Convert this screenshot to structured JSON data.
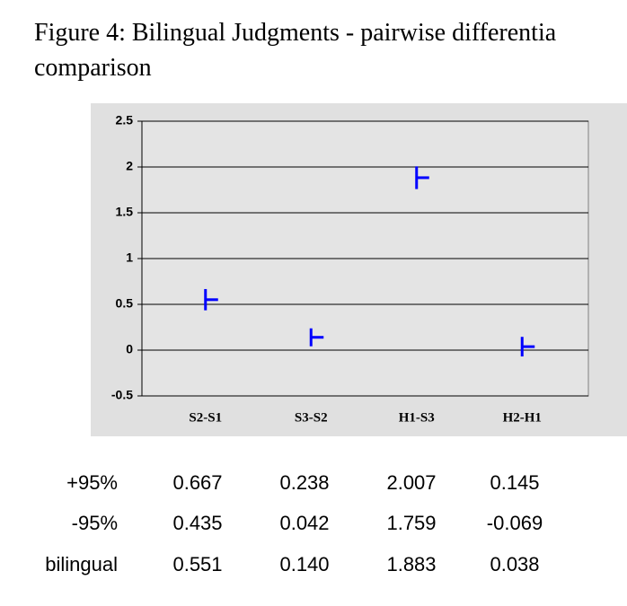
{
  "chart_data": {
    "type": "errorbar",
    "title": [
      "Figure 4: Bilingual Judgments - pairwise differentia",
      "comparison"
    ],
    "categories": [
      "S2-S1",
      "S3-S2",
      "H1-S3",
      "H2-H1"
    ],
    "color": "#0000ff",
    "ylim": [
      -0.5,
      2.5
    ],
    "yticks": [
      -0.5,
      0,
      0.5,
      1,
      1.5,
      2,
      2.5
    ],
    "grid": true,
    "series": [
      {
        "name": "+95%",
        "values": [
          0.667,
          0.238,
          2.007,
          0.145
        ],
        "value_labels": [
          "0.667",
          "0.238",
          "2.007",
          "0.145"
        ]
      },
      {
        "name": "-95%",
        "values": [
          0.435,
          0.042,
          1.759,
          -0.069
        ],
        "value_labels": [
          "0.435",
          "0.042",
          "1.759",
          "-0.069"
        ]
      },
      {
        "name": "bilingual",
        "values": [
          0.551,
          0.14,
          1.883,
          0.038
        ],
        "value_labels": [
          "0.551",
          "0.140",
          "1.883",
          "0.038"
        ]
      }
    ]
  }
}
